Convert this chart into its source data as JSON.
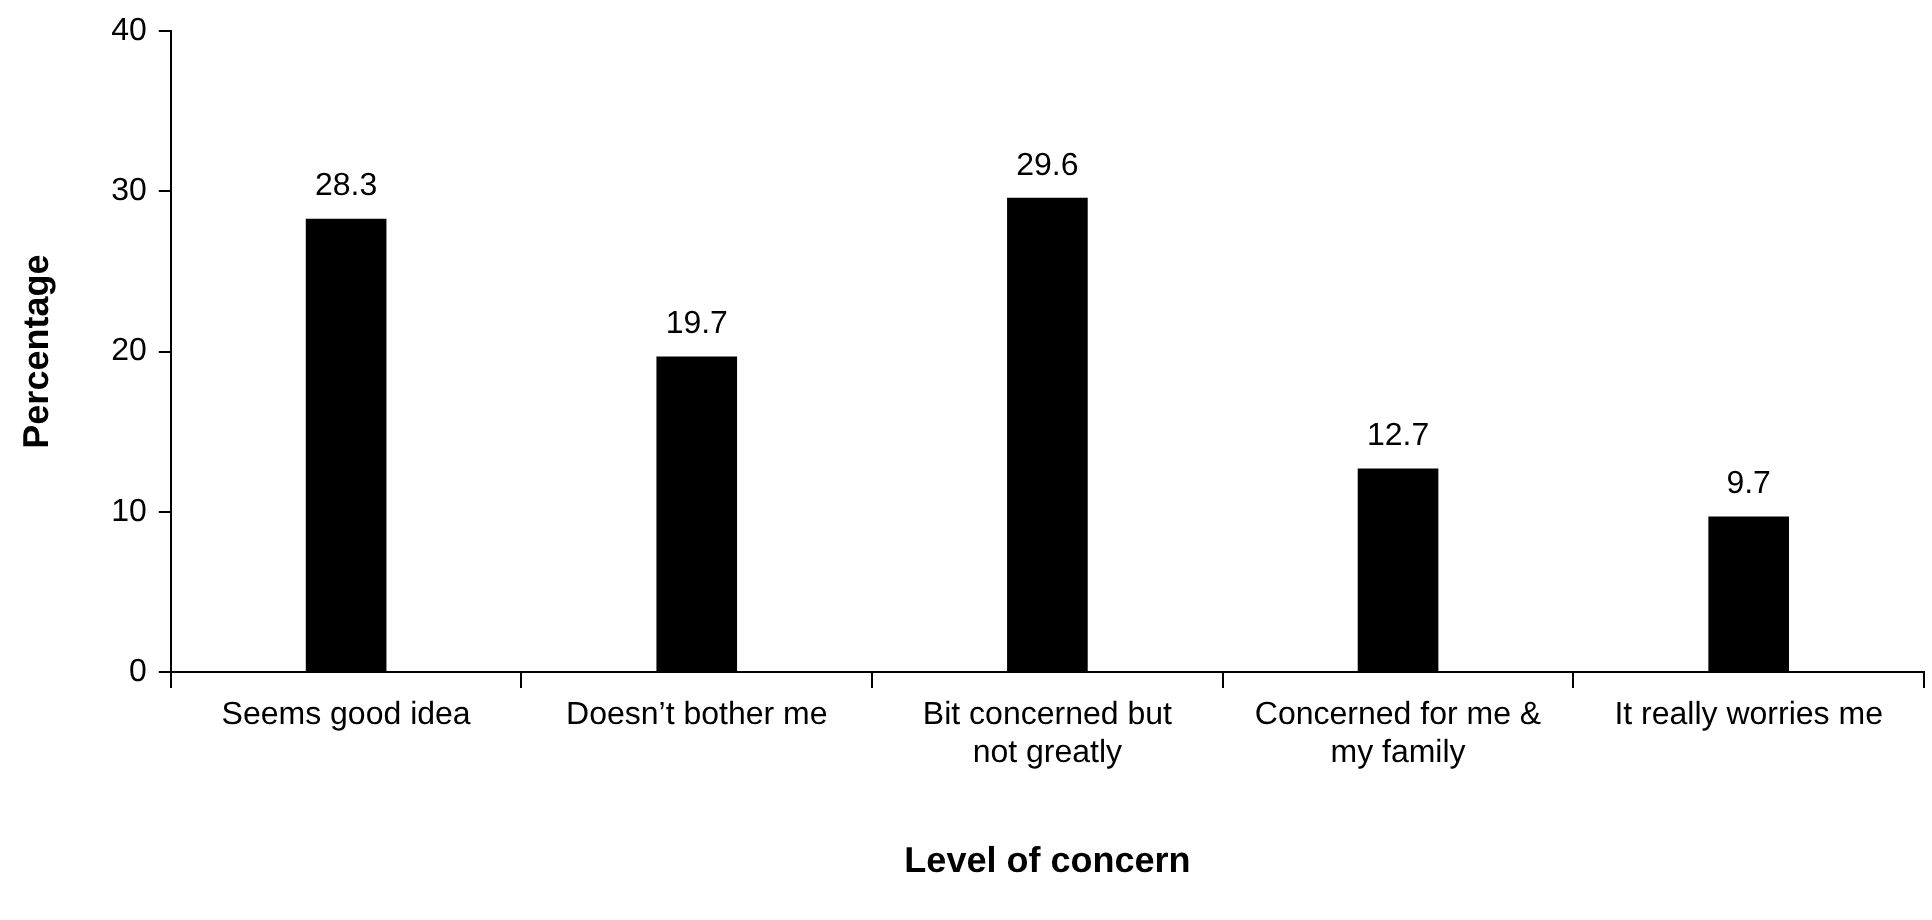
{
  "chart_data": {
    "type": "bar",
    "categories": [
      "Seems good idea",
      "Doesn’t bother me",
      "Bit concerned but not greatly",
      "Concerned for me & my family",
      "It really worries me"
    ],
    "values": [
      28.3,
      19.7,
      29.6,
      12.7,
      9.7
    ],
    "color": "#000000",
    "xlabel": "Level of concern",
    "ylabel": "Percentage",
    "ylim": [
      0,
      40
    ],
    "yticks": [
      0,
      10,
      20,
      30,
      40
    ],
    "grid": false,
    "legend": false,
    "data_labels": true
  }
}
